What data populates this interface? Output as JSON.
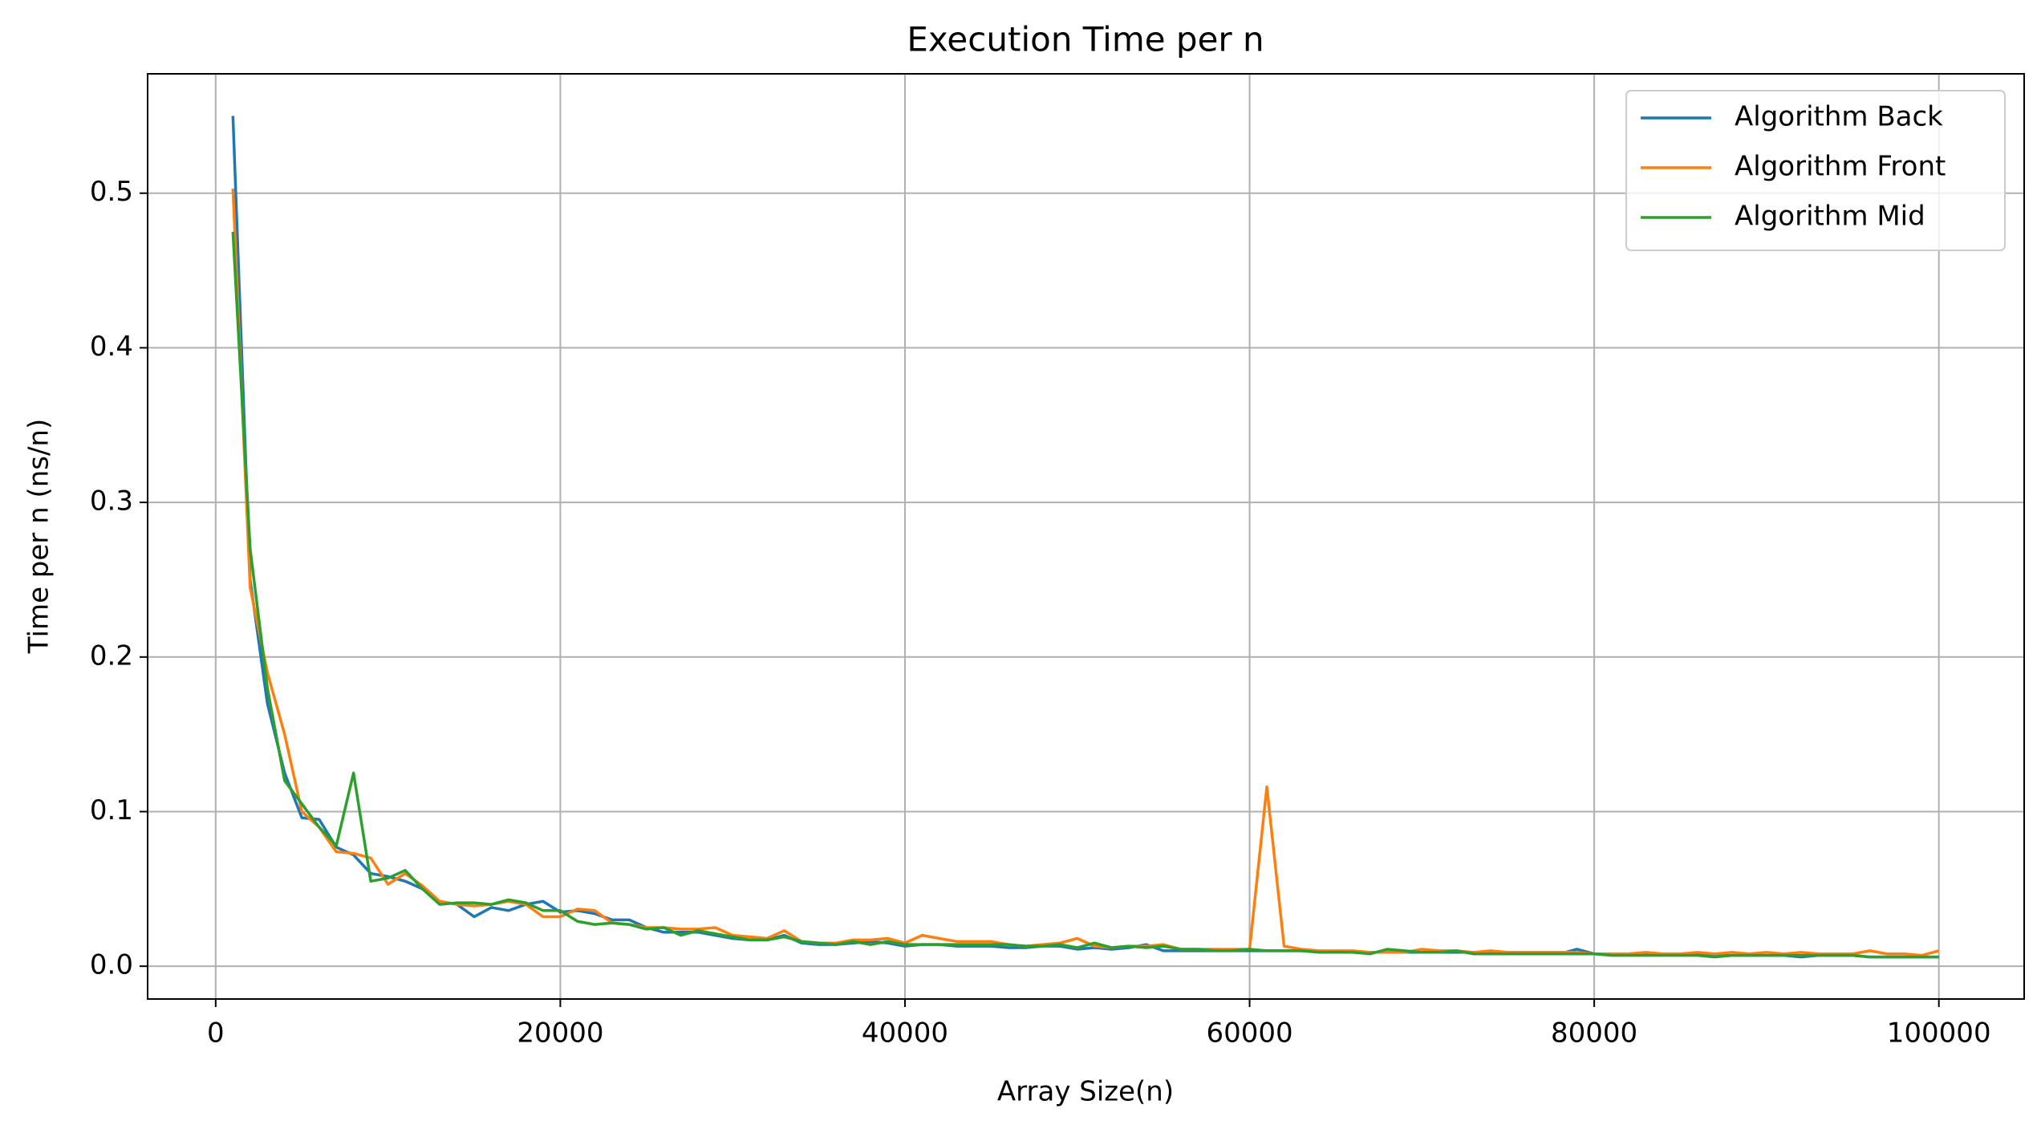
{
  "chart_data": {
    "type": "line",
    "title": "Execution Time per n",
    "x_label": "Array Size(n)",
    "y_label": "Time per n (ns/n)",
    "x": [
      1000,
      2000,
      3000,
      4000,
      5000,
      6000,
      7000,
      8000,
      9000,
      10000,
      11000,
      12000,
      13000,
      14000,
      15000,
      16000,
      17000,
      18000,
      19000,
      20000,
      21000,
      22000,
      23000,
      24000,
      25000,
      26000,
      27000,
      28000,
      29000,
      30000,
      31000,
      32000,
      33000,
      34000,
      35000,
      36000,
      37000,
      38000,
      39000,
      40000,
      41000,
      42000,
      43000,
      44000,
      45000,
      46000,
      47000,
      48000,
      49000,
      50000,
      51000,
      52000,
      53000,
      54000,
      55000,
      56000,
      57000,
      58000,
      59000,
      60000,
      61000,
      62000,
      63000,
      64000,
      65000,
      66000,
      67000,
      68000,
      69000,
      70000,
      71000,
      72000,
      73000,
      74000,
      75000,
      76000,
      77000,
      78000,
      79000,
      80000,
      81000,
      82000,
      83000,
      84000,
      85000,
      86000,
      87000,
      88000,
      89000,
      90000,
      91000,
      92000,
      93000,
      94000,
      95000,
      96000,
      97000,
      98000,
      99000,
      100000
    ],
    "series": [
      {
        "name": "Algorithm Back",
        "color": "#1f77b4",
        "values": [
          0.55,
          0.25,
          0.17,
          0.125,
          0.096,
          0.095,
          0.077,
          0.072,
          0.06,
          0.058,
          0.055,
          0.05,
          0.042,
          0.04,
          0.032,
          0.038,
          0.036,
          0.04,
          0.042,
          0.035,
          0.036,
          0.034,
          0.03,
          0.03,
          0.025,
          0.022,
          0.022,
          0.022,
          0.02,
          0.018,
          0.017,
          0.017,
          0.02,
          0.015,
          0.014,
          0.014,
          0.015,
          0.016,
          0.015,
          0.013,
          0.014,
          0.014,
          0.013,
          0.013,
          0.013,
          0.012,
          0.012,
          0.013,
          0.013,
          0.011,
          0.012,
          0.011,
          0.012,
          0.014,
          0.01,
          0.01,
          0.01,
          0.01,
          0.01,
          0.01,
          0.01,
          0.01,
          0.01,
          0.01,
          0.009,
          0.009,
          0.009,
          0.009,
          0.009,
          0.009,
          0.009,
          0.009,
          0.009,
          0.009,
          0.009,
          0.009,
          0.008,
          0.008,
          0.011,
          0.008,
          0.008,
          0.008,
          0.008,
          0.008,
          0.008,
          0.008,
          0.007,
          0.007,
          0.007,
          0.007,
          0.007,
          0.006,
          0.007,
          0.007,
          0.007,
          0.006,
          0.006,
          0.006,
          0.006,
          0.006
        ]
      },
      {
        "name": "Algorithm Front",
        "color": "#ff7f0e",
        "values": [
          0.503,
          0.245,
          0.19,
          0.15,
          0.1,
          0.09,
          0.074,
          0.073,
          0.07,
          0.053,
          0.06,
          0.052,
          0.042,
          0.04,
          0.039,
          0.04,
          0.042,
          0.04,
          0.032,
          0.032,
          0.037,
          0.036,
          0.028,
          0.027,
          0.025,
          0.025,
          0.024,
          0.024,
          0.025,
          0.02,
          0.019,
          0.018,
          0.023,
          0.016,
          0.015,
          0.015,
          0.017,
          0.017,
          0.018,
          0.015,
          0.02,
          0.018,
          0.016,
          0.016,
          0.016,
          0.014,
          0.013,
          0.014,
          0.015,
          0.018,
          0.013,
          0.012,
          0.013,
          0.013,
          0.014,
          0.011,
          0.011,
          0.011,
          0.011,
          0.011,
          0.116,
          0.013,
          0.011,
          0.01,
          0.01,
          0.01,
          0.009,
          0.009,
          0.009,
          0.011,
          0.01,
          0.01,
          0.009,
          0.01,
          0.009,
          0.009,
          0.009,
          0.009,
          0.009,
          0.008,
          0.008,
          0.008,
          0.009,
          0.008,
          0.008,
          0.009,
          0.008,
          0.009,
          0.008,
          0.009,
          0.008,
          0.009,
          0.008,
          0.008,
          0.008,
          0.01,
          0.008,
          0.008,
          0.007,
          0.01
        ]
      },
      {
        "name": "Algorithm Mid",
        "color": "#2ca02c",
        "values": [
          0.475,
          0.27,
          0.18,
          0.12,
          0.105,
          0.09,
          0.078,
          0.125,
          0.055,
          0.057,
          0.062,
          0.05,
          0.04,
          0.041,
          0.041,
          0.04,
          0.043,
          0.041,
          0.036,
          0.036,
          0.029,
          0.027,
          0.028,
          0.027,
          0.024,
          0.025,
          0.02,
          0.023,
          0.021,
          0.019,
          0.017,
          0.017,
          0.019,
          0.016,
          0.015,
          0.014,
          0.016,
          0.014,
          0.016,
          0.014,
          0.014,
          0.014,
          0.014,
          0.014,
          0.014,
          0.014,
          0.013,
          0.013,
          0.014,
          0.012,
          0.015,
          0.012,
          0.013,
          0.012,
          0.013,
          0.011,
          0.011,
          0.01,
          0.01,
          0.011,
          0.01,
          0.01,
          0.01,
          0.009,
          0.009,
          0.009,
          0.008,
          0.011,
          0.01,
          0.009,
          0.009,
          0.01,
          0.008,
          0.008,
          0.008,
          0.008,
          0.008,
          0.008,
          0.008,
          0.008,
          0.007,
          0.007,
          0.007,
          0.007,
          0.007,
          0.007,
          0.006,
          0.007,
          0.007,
          0.007,
          0.007,
          0.007,
          0.007,
          0.007,
          0.007,
          0.006,
          0.006,
          0.006,
          0.006,
          0.006
        ]
      }
    ],
    "xlim": [
      -3950,
      104950
    ],
    "xticks": [
      0,
      20000,
      40000,
      60000,
      80000,
      100000
    ],
    "ylim": [
      -0.0212,
      0.5772
    ],
    "yticks": [
      {
        "value": 0,
        "label": "0.0"
      },
      0.1,
      0.2,
      0.3,
      0.4,
      0.5
    ],
    "grid": true,
    "legend": "upper right"
  }
}
